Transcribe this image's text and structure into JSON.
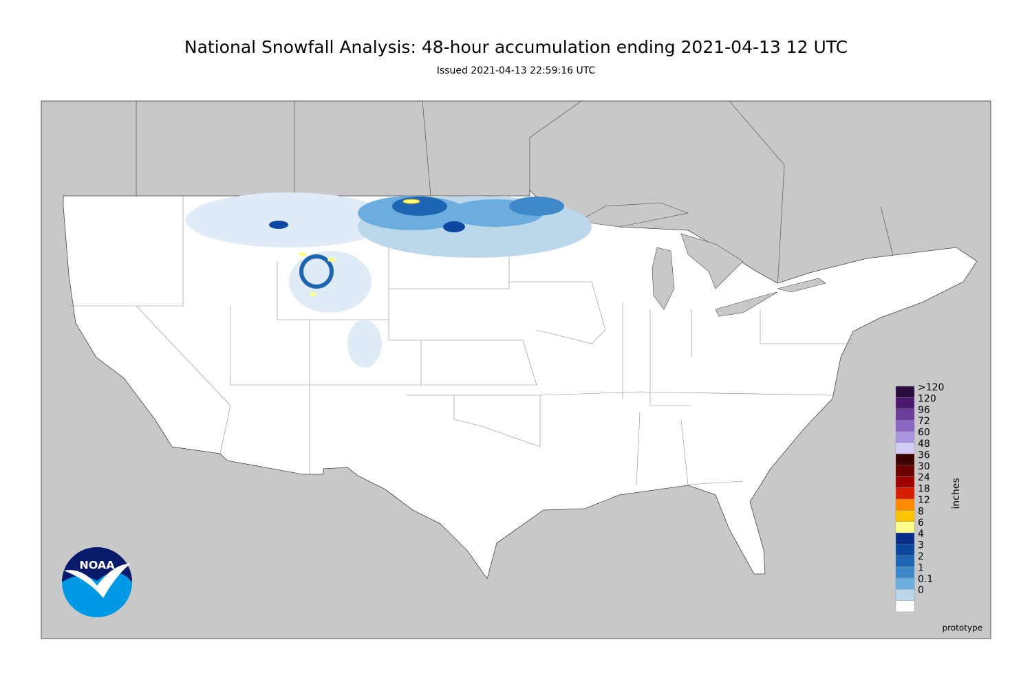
{
  "header": {
    "title": "National Snowfall Analysis: 48-hour accumulation ending 2021-04-13 12 UTC",
    "subtitle": "Issued 2021-04-13 22:59:16 UTC"
  },
  "legend": {
    "unit": "inches",
    "items": [
      {
        "label": ">120",
        "color": "#2b0b3d"
      },
      {
        "label": "120",
        "color": "#4a1a6e"
      },
      {
        "label": "96",
        "color": "#6a3d9a"
      },
      {
        "label": "72",
        "color": "#8a65c2"
      },
      {
        "label": "60",
        "color": "#ab95e0"
      },
      {
        "label": "48",
        "color": "#d3ccf7"
      },
      {
        "label": "36",
        "color": "#3a0000"
      },
      {
        "label": "30",
        "color": "#6a0000"
      },
      {
        "label": "24",
        "color": "#a00000"
      },
      {
        "label": "18",
        "color": "#d81e00"
      },
      {
        "label": "12",
        "color": "#ff8a00"
      },
      {
        "label": "8",
        "color": "#ffc400"
      },
      {
        "label": "6",
        "color": "#ffff8c"
      },
      {
        "label": "4",
        "color": "#082c8a"
      },
      {
        "label": "3",
        "color": "#0b46a0"
      },
      {
        "label": "2",
        "color": "#1d64b2"
      },
      {
        "label": "1",
        "color": "#3d89c9"
      },
      {
        "label": "0.1",
        "color": "#6cade0"
      },
      {
        "label": "0",
        "color": "#bcd6ea"
      }
    ]
  },
  "logo": "NOAA",
  "footer": "prototype"
}
